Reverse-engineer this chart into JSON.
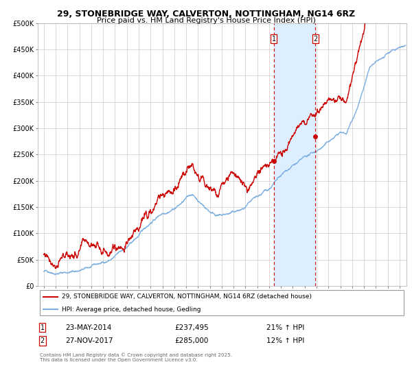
{
  "title": "29, STONEBRIDGE WAY, CALVERTON, NOTTINGHAM, NG14 6RZ",
  "subtitle": "Price paid vs. HM Land Registry's House Price Index (HPI)",
  "legend_line1": "29, STONEBRIDGE WAY, CALVERTON, NOTTINGHAM, NG14 6RZ (detached house)",
  "legend_line2": "HPI: Average price, detached house, Gedling",
  "transaction1_date": "23-MAY-2014",
  "transaction1_price": "£237,495",
  "transaction1_hpi": "21% ↑ HPI",
  "transaction2_date": "27-NOV-2017",
  "transaction2_price": "£285,000",
  "transaction2_hpi": "12% ↑ HPI",
  "footer": "Contains HM Land Registry data © Crown copyright and database right 2025.\nThis data is licensed under the Open Government Licence v3.0.",
  "red_color": "#cc0000",
  "blue_color": "#7aade0",
  "shade_color": "#ddeeff",
  "vline_color": "#cc0000",
  "dot_color": "#cc0000",
  "ylim": [
    0,
    500000
  ],
  "yticks": [
    0,
    50000,
    100000,
    150000,
    200000,
    250000,
    300000,
    350000,
    400000,
    450000,
    500000
  ],
  "transaction1_x": 2014.39,
  "transaction2_x": 2017.91,
  "transaction1_y": 237495,
  "transaction2_y": 285000,
  "xmin": 1994.5,
  "xmax": 2025.6
}
